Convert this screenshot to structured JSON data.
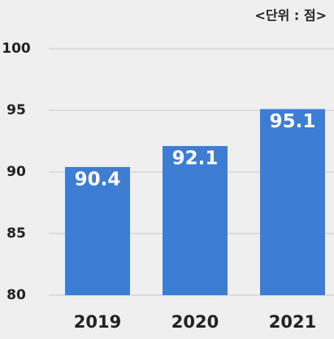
{
  "chart_data": {
    "type": "bar",
    "unit_label": "<단위 : 점>",
    "categories": [
      "2019",
      "2020",
      "2021"
    ],
    "values": [
      90.4,
      92.1,
      95.1
    ],
    "color": "#3d7dd3",
    "ylim": [
      80,
      100
    ],
    "yticks": [
      80,
      85,
      90,
      95,
      100
    ],
    "grid": true
  }
}
